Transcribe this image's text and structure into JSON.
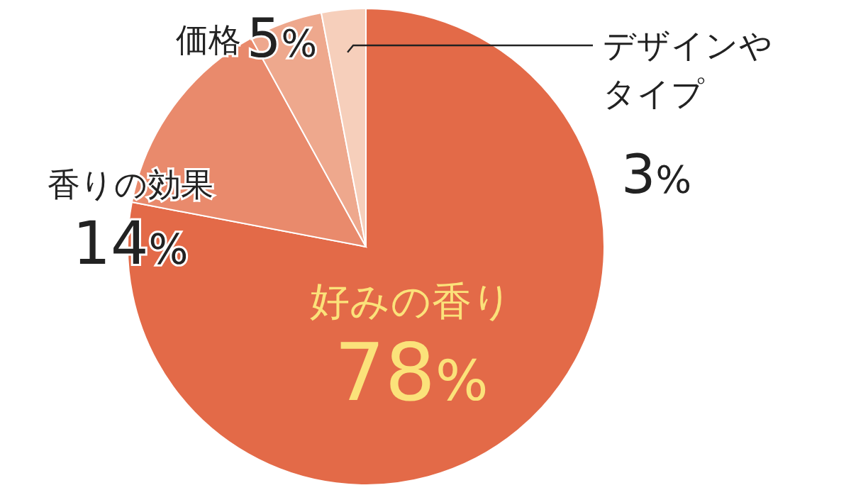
{
  "chart_data": {
    "type": "pie",
    "categories": [
      "好みの香り",
      "香りの効果",
      "価格",
      "デザインやタイプ"
    ],
    "values": [
      78,
      14,
      5,
      3
    ],
    "colors": [
      "#e36a48",
      "#e98a6c",
      "#eea88d",
      "#f6cfbb"
    ],
    "value_labels": [
      "78%",
      "14%",
      "5%",
      "3%"
    ]
  }
}
